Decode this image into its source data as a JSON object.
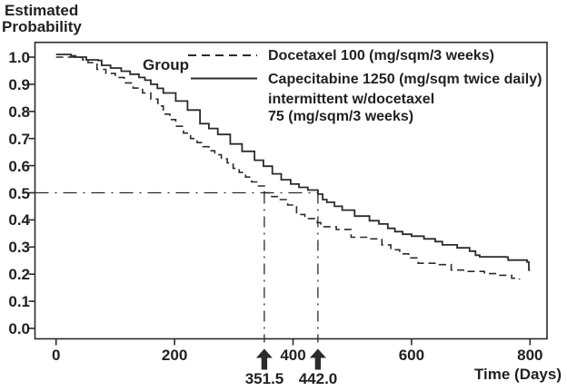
{
  "title": {
    "line1": "Estimated",
    "line2": "Probability"
  },
  "group_label": "Group",
  "legend": {
    "docetaxel_label": "Docetaxel 100 (mg/sqm/3 weeks)",
    "capecitabine_label_line1": "Capecitabine 1250 (mg/sqm twice daily)",
    "capecitabine_label_line2": "intermittent w/docetaxel",
    "capecitabine_label_line3": "75 (mg/sqm/3 weeks)"
  },
  "x_axis": {
    "label": "Time (Days)",
    "tick_labels": [
      "0",
      "200",
      "400",
      "600",
      "800"
    ]
  },
  "y_axis": {
    "tick_labels": [
      "1.0",
      "0.9",
      "0.8",
      "0.7",
      "0.6",
      "0.5",
      "0.4",
      "0.3",
      "0.2",
      "0.1",
      "0.0"
    ]
  },
  "annotations": {
    "median_docetaxel_label": "351.5",
    "median_capecitabine_label": "442.0",
    "median_docetaxel_days": 351.5,
    "median_capecitabine_days": 442.0,
    "reference_probability": 0.5
  },
  "colors": {
    "line": "#2b2b2b",
    "text": "#231f20",
    "background": "#ffffff"
  },
  "chart_data": {
    "type": "line",
    "curve_type": "step-after",
    "title": "",
    "xlabel": "Time (Days)",
    "ylabel": "Estimated Probability",
    "xlim": [
      0,
      800
    ],
    "ylim": [
      0.0,
      1.0
    ],
    "grid": false,
    "legend_position": "top-right-inside",
    "x_ticks": [
      0,
      200,
      400,
      600,
      800
    ],
    "y_ticks": [
      1.0,
      0.9,
      0.8,
      0.7,
      0.6,
      0.5,
      0.4,
      0.3,
      0.2,
      0.1,
      0.0
    ],
    "series": [
      {
        "name": "Docetaxel 100 (mg/sqm/3 weeks)",
        "style": "dashed",
        "median_days": 351.5,
        "points": [
          [
            0,
            1.0
          ],
          [
            33,
            1.0
          ],
          [
            45,
            0.99
          ],
          [
            54,
            0.98
          ],
          [
            69,
            0.955
          ],
          [
            84,
            0.94
          ],
          [
            100,
            0.925
          ],
          [
            115,
            0.905
          ],
          [
            130,
            0.886
          ],
          [
            146,
            0.868
          ],
          [
            160,
            0.845
          ],
          [
            172,
            0.82
          ],
          [
            181,
            0.79
          ],
          [
            192,
            0.77
          ],
          [
            202,
            0.745
          ],
          [
            215,
            0.72
          ],
          [
            227,
            0.7
          ],
          [
            238,
            0.685
          ],
          [
            248,
            0.67
          ],
          [
            258,
            0.655
          ],
          [
            268,
            0.64
          ],
          [
            279,
            0.625
          ],
          [
            289,
            0.61
          ],
          [
            299,
            0.59
          ],
          [
            309,
            0.575
          ],
          [
            320,
            0.558
          ],
          [
            330,
            0.54
          ],
          [
            340,
            0.525
          ],
          [
            351.5,
            0.5
          ],
          [
            364,
            0.486
          ],
          [
            376,
            0.475
          ],
          [
            391,
            0.455
          ],
          [
            406,
            0.42
          ],
          [
            420,
            0.405
          ],
          [
            441,
            0.39
          ],
          [
            447,
            0.375
          ],
          [
            473,
            0.365
          ],
          [
            498,
            0.336
          ],
          [
            529,
            0.33
          ],
          [
            550,
            0.308
          ],
          [
            565,
            0.29
          ],
          [
            580,
            0.275
          ],
          [
            595,
            0.26
          ],
          [
            611,
            0.24
          ],
          [
            647,
            0.235
          ],
          [
            667,
            0.215
          ],
          [
            693,
            0.21
          ],
          [
            723,
            0.202
          ],
          [
            749,
            0.196
          ],
          [
            769,
            0.185
          ],
          [
            782,
            0.18
          ]
        ]
      },
      {
        "name": "Capecitabine 1250 (mg/sqm twice daily) intermittent w/docetaxel 75 (mg/sqm/3 weeks)",
        "style": "solid",
        "median_days": 442.0,
        "points": [
          [
            0,
            1.01
          ],
          [
            25,
            1.005
          ],
          [
            33,
            1.0
          ],
          [
            51,
            0.99
          ],
          [
            71,
            0.988
          ],
          [
            77,
            0.97
          ],
          [
            92,
            0.96
          ],
          [
            110,
            0.948
          ],
          [
            125,
            0.937
          ],
          [
            140,
            0.925
          ],
          [
            150,
            0.915
          ],
          [
            160,
            0.9
          ],
          [
            171,
            0.885
          ],
          [
            181,
            0.868
          ],
          [
            202,
            0.838
          ],
          [
            222,
            0.805
          ],
          [
            243,
            0.755
          ],
          [
            258,
            0.737
          ],
          [
            273,
            0.715
          ],
          [
            294,
            0.68
          ],
          [
            314,
            0.653
          ],
          [
            335,
            0.62
          ],
          [
            350,
            0.598
          ],
          [
            365,
            0.57
          ],
          [
            380,
            0.548
          ],
          [
            396,
            0.532
          ],
          [
            410,
            0.52
          ],
          [
            425,
            0.51
          ],
          [
            442,
            0.495
          ],
          [
            450,
            0.475
          ],
          [
            457,
            0.465
          ],
          [
            470,
            0.45
          ],
          [
            483,
            0.436
          ],
          [
            504,
            0.414
          ],
          [
            529,
            0.397
          ],
          [
            545,
            0.385
          ],
          [
            560,
            0.369
          ],
          [
            572,
            0.357
          ],
          [
            585,
            0.347
          ],
          [
            600,
            0.34
          ],
          [
            621,
            0.33
          ],
          [
            640,
            0.32
          ],
          [
            652,
            0.308
          ],
          [
            677,
            0.297
          ],
          [
            698,
            0.285
          ],
          [
            708,
            0.27
          ],
          [
            715,
            0.264
          ],
          [
            759,
            0.263
          ],
          [
            763,
            0.252
          ],
          [
            790,
            0.252
          ],
          [
            795,
            0.245
          ],
          [
            798,
            0.215
          ],
          [
            800,
            0.215
          ]
        ]
      }
    ]
  }
}
